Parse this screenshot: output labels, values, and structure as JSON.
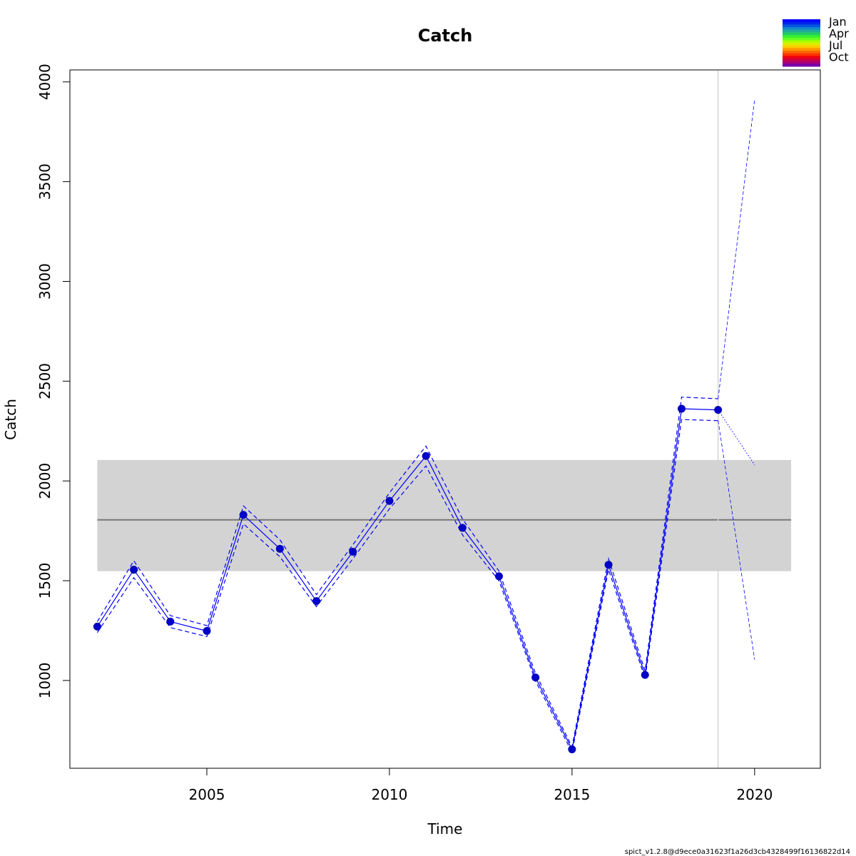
{
  "chart_data": {
    "type": "line",
    "title": "Catch",
    "xlabel": "Time",
    "ylabel": "Catch",
    "xlim": [
      2001.25,
      2021.8
    ],
    "ylim": [
      560,
      4060
    ],
    "x_ticks": [
      2005,
      2010,
      2015,
      2020
    ],
    "y_ticks": [
      1000,
      1500,
      2000,
      2500,
      3000,
      3500,
      4000
    ],
    "grid": false,
    "series": [
      {
        "x": [
          2002,
          2003,
          2004,
          2005,
          2006,
          2007,
          2008,
          2009,
          2010,
          2011,
          2012,
          2013,
          2014,
          2015,
          2016,
          2017,
          2018,
          2019
        ],
        "values": [
          1270,
          1555,
          1295,
          1248,
          1830,
          1660,
          1398,
          1645,
          1900,
          2125,
          1765,
          1522,
          1015,
          655,
          1580,
          1028,
          2362,
          2356
        ]
      },
      {
        "x": [
          2002,
          2003,
          2004,
          2005,
          2006,
          2007,
          2008,
          2009,
          2010,
          2011,
          2012,
          2013,
          2014,
          2015,
          2016,
          2017,
          2018,
          2019
        ],
        "values": [
          1295,
          1600,
          1325,
          1275,
          1875,
          1705,
          1430,
          1680,
          1940,
          2175,
          1810,
          1548,
          1035,
          668,
          1610,
          1048,
          2420,
          2412
        ]
      },
      {
        "x": [
          2002,
          2003,
          2004,
          2005,
          2006,
          2007,
          2008,
          2009,
          2010,
          2011,
          2012,
          2013,
          2014,
          2015,
          2016,
          2017,
          2018,
          2019
        ],
        "values": [
          1240,
          1515,
          1265,
          1220,
          1785,
          1620,
          1370,
          1610,
          1860,
          2075,
          1730,
          1500,
          998,
          640,
          1555,
          1010,
          2308,
          2302
        ]
      },
      {
        "x": [
          2019,
          2020
        ],
        "values": [
          2356,
          2080
        ]
      },
      {
        "x": [
          2019,
          2020
        ],
        "values": [
          2412,
          3915
        ]
      },
      {
        "x": [
          2019,
          2020
        ],
        "values": [
          2302,
          1105
        ]
      }
    ],
    "reference_line": 1805,
    "reference_band": [
      1548,
      2105
    ],
    "reference_band_x": [
      2002,
      2021
    ],
    "vertical_line_x": 2019,
    "colors": {
      "points": "#0000cd",
      "lines": "#0000ff",
      "band": "#d3d3d3",
      "reference": "#777777",
      "vline": "#d3d3d3"
    },
    "legend": {
      "position": "top-right",
      "labels": [
        "Jan",
        "Apr",
        "Jul",
        "Oct"
      ],
      "colors": [
        "#0000ff",
        "#0022ee",
        "#0055dd",
        "#1188cc",
        "#22aa99",
        "#22cc66",
        "#33ee33",
        "#66ff22",
        "#aaff00",
        "#ddee00",
        "#ffcc00",
        "#ff9900",
        "#ff6600",
        "#ff3300",
        "#ee0011",
        "#cc0044",
        "#aa0077",
        "#7700aa"
      ]
    },
    "footer": "spict_v1.2.8@d9ece0a31623f1a26d3cb4328499f16136822d14"
  }
}
